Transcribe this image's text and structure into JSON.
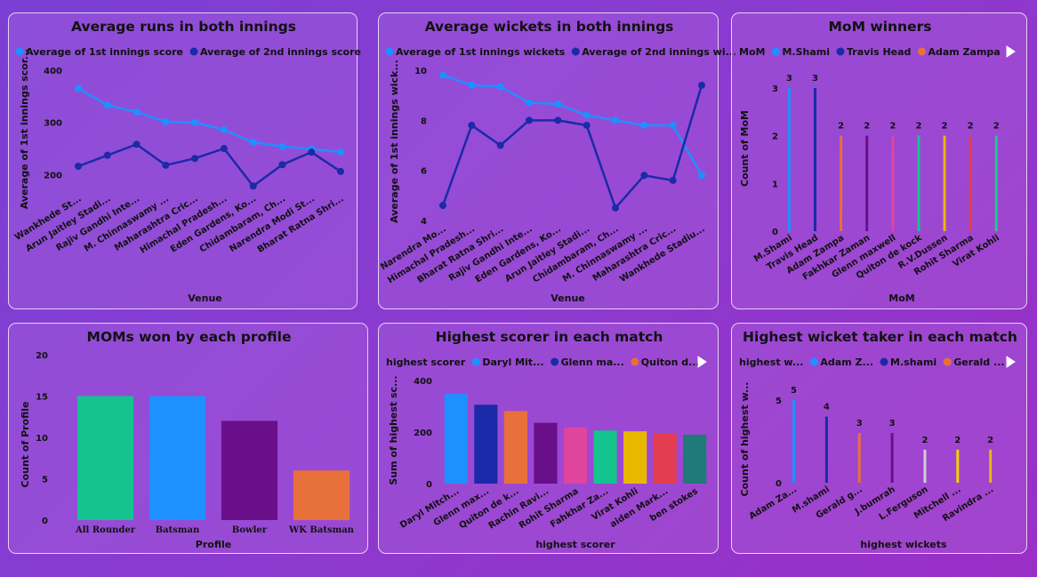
{
  "colors": {
    "primary": "#1e90ff",
    "secondary": "#1a2aa8"
  },
  "chart_data": [
    {
      "id": "c1",
      "type": "line",
      "title": "Average runs in both innings",
      "xlabel": "Venue",
      "ylabel": "Average of 1st innings scor...",
      "ylim": [
        170,
        400
      ],
      "yticks": [
        200,
        300,
        400
      ],
      "categories": [
        "Wankhede St...",
        "Arun Jaitley Stadi...",
        "Rajiv Gandhi Inte...",
        "M. Chinnaswamy ...",
        "Maharashtra Cric...",
        "Himachal Pradesh...",
        "Eden Gardens, Ko...",
        "Chidambaram, Ch...",
        "Narendra Modi St...",
        "Bharat Ratna Shri..."
      ],
      "series": [
        {
          "name": "Average of 1st innings score",
          "color": "#1e90ff",
          "values": [
            365,
            333,
            320,
            301,
            300,
            286,
            262,
            254,
            249,
            243
          ]
        },
        {
          "name": "Average of 2nd innings score",
          "color": "#1a2aa8",
          "values": [
            216,
            237,
            258,
            218,
            231,
            250,
            178,
            219,
            243,
            206
          ]
        }
      ],
      "grid": false,
      "legend": "top-left"
    },
    {
      "id": "c2",
      "type": "line",
      "title": "Average wickets in both innings",
      "xlabel": "Venue",
      "ylabel": "Average of 1st innings wick...",
      "ylim": [
        4,
        10
      ],
      "yticks": [
        4,
        6,
        8,
        10
      ],
      "categories": [
        "Narendra Mo...",
        "Himachal Pradesh...",
        "Bharat Ratna Shri...",
        "Rajiv Gandhi Inte...",
        "Eden Gardens, Ko...",
        "Arun Jaitley Stadi...",
        "Chidambaram, Ch...",
        "M. Chinnaswamy ...",
        "Maharashtra Cric...",
        "Wankhede Stadiu..."
      ],
      "series": [
        {
          "name": "Average of 1st innings wickets",
          "color": "#1e90ff",
          "values": [
            9.8,
            9.4,
            9.35,
            8.7,
            8.65,
            8.2,
            8.0,
            7.8,
            7.8,
            5.8
          ]
        },
        {
          "name": "Average of 2nd innings wi...",
          "color": "#1a2aa8",
          "values": [
            4.6,
            7.8,
            7.0,
            8.0,
            8.0,
            7.8,
            4.5,
            5.8,
            5.6,
            9.4
          ]
        }
      ],
      "grid": false,
      "legend": "top-left"
    },
    {
      "id": "c3",
      "type": "bar",
      "title": "MoM winners",
      "legend_title": "MoM",
      "legend_items": [
        {
          "name": "M.Shami",
          "color": "#1e90ff"
        },
        {
          "name": "Travis Head",
          "color": "#1a2aa8"
        },
        {
          "name": "Adam Zampa",
          "color": "#e8703a"
        }
      ],
      "xlabel": "MoM",
      "ylabel": "Count of MoM",
      "ylim": [
        0,
        3
      ],
      "yticks": [
        0,
        1,
        2,
        3
      ],
      "categories": [
        "M.Shami",
        "Travis Head",
        "Adam Zampa",
        "Fakhkar Zaman",
        "Glenn maxwell",
        "Quiton de kock",
        "R.V.Dussen",
        "Rohit Sharma",
        "Virat Kohli"
      ],
      "values": [
        3,
        3,
        2,
        2,
        2,
        2,
        2,
        2,
        2
      ],
      "colors": [
        "#1e90ff",
        "#1a2aa8",
        "#e8703a",
        "#6a0f8a",
        "#e0449e",
        "#14c38e",
        "#e8b800",
        "#e23d50",
        "#1fc98a"
      ],
      "legend": "top"
    },
    {
      "id": "c4",
      "type": "bar",
      "title": "MOMs won by each profile",
      "xlabel": "Profile",
      "ylabel": "Count of Profile",
      "ylim": [
        0,
        20
      ],
      "yticks": [
        0,
        5,
        10,
        15,
        20
      ],
      "categories": [
        "All Rounder",
        "Batsman",
        "Bowler",
        "WK Batsman"
      ],
      "values": [
        15,
        15,
        12,
        6
      ],
      "colors": [
        "#14c38e",
        "#1e90ff",
        "#6a0f8a",
        "#e8703a"
      ]
    },
    {
      "id": "c5",
      "type": "bar",
      "title": "Highest scorer in each match",
      "legend_title": "highest scorer",
      "legend_items": [
        {
          "name": "Daryl Mit...",
          "color": "#1e90ff"
        },
        {
          "name": "Glenn ma...",
          "color": "#1a2aa8"
        },
        {
          "name": "Quiton d...",
          "color": "#e8703a"
        }
      ],
      "xlabel": "highest scorer",
      "ylabel": "Sum of highest sc...",
      "ylim": [
        0,
        400
      ],
      "yticks": [
        0,
        200,
        400
      ],
      "categories": [
        "Daryl Mitch...",
        "Glenn max...",
        "Quiton de k...",
        "Rachin Ravi...",
        "Rohit Sharma",
        "Fahkhar Za...",
        "Virat Kohli",
        "aiden Mark...",
        "ben stokes"
      ],
      "values": [
        348,
        306,
        282,
        236,
        218,
        206,
        203,
        196,
        190
      ],
      "colors": [
        "#1e90ff",
        "#1a2aa8",
        "#e8703a",
        "#6a0f8a",
        "#e0449e",
        "#14c38e",
        "#e8b800",
        "#e23d50",
        "#1f7a78"
      ],
      "legend": "top"
    },
    {
      "id": "c6",
      "type": "bar",
      "title": "Highest wicket taker in each match",
      "legend_title": "highest w...",
      "legend_items": [
        {
          "name": "Adam Z...",
          "color": "#1e90ff"
        },
        {
          "name": "M.shami",
          "color": "#1a2aa8"
        },
        {
          "name": "Gerald ...",
          "color": "#e8703a"
        }
      ],
      "xlabel": "highest wickets",
      "ylabel": "Count of highest w...",
      "ylim": [
        0,
        5
      ],
      "yticks": [
        0,
        5
      ],
      "categories": [
        "Adam Za...",
        "M.shami",
        "Gerald g...",
        "J.bumrah",
        "L.Ferguson",
        "Mitchell ...",
        "Ravindra ..."
      ],
      "values": [
        5,
        4,
        3,
        3,
        2,
        2,
        2
      ],
      "colors": [
        "#1e90ff",
        "#1a2aa8",
        "#e8703a",
        "#6a0f8a",
        "#cfcfcf",
        "#f2d000",
        "#e8b800"
      ],
      "legend": "top"
    }
  ]
}
